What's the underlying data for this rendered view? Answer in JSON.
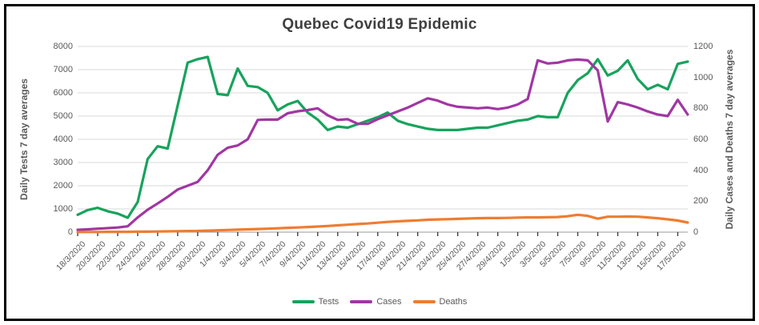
{
  "window": {
    "title": "Quebec Covid19 Epidemic"
  },
  "colors": {
    "tests": "#17A35C",
    "cases": "#A136A3",
    "deaths": "#EE7D31",
    "grid": "#D9D9D9",
    "axis_line": "#9a9a9a",
    "tick_mark": "#404040",
    "title_text": "#3f3f3f",
    "label_text": "#595959",
    "frame": "#000000"
  },
  "chart_data": {
    "type": "line",
    "title": "Quebec Covid19 Epidemic",
    "xlabel": "",
    "ylabel_left": "Daily Tests 7 day averages",
    "ylabel_right": "Daily Cases and Deaths 7 day averages",
    "grid": "horizontal",
    "legend_position": "bottom",
    "y_left": {
      "min": 0,
      "max": 8000,
      "tick_step": 1000,
      "ticks": [
        0,
        1000,
        2000,
        3000,
        4000,
        5000,
        6000,
        7000,
        8000
      ]
    },
    "y_right": {
      "min": 0,
      "max": 1200,
      "tick_step": 200,
      "ticks": [
        0,
        200,
        400,
        600,
        800,
        1000,
        1200
      ]
    },
    "x": [
      "18/3/2020",
      "19/3/2020",
      "20/3/2020",
      "21/3/2020",
      "22/3/2020",
      "23/3/2020",
      "24/3/2020",
      "25/3/2020",
      "26/3/2020",
      "27/3/2020",
      "28/3/2020",
      "29/3/2020",
      "30/3/2020",
      "31/3/2020",
      "1/4/2020",
      "2/4/2020",
      "3/4/2020",
      "4/4/2020",
      "5/4/2020",
      "6/4/2020",
      "7/4/2020",
      "8/4/2020",
      "9/4/2020",
      "10/4/2020",
      "11/4/2020",
      "12/4/2020",
      "13/4/2020",
      "14/4/2020",
      "15/4/2020",
      "16/4/2020",
      "17/4/2020",
      "18/4/2020",
      "19/4/2020",
      "20/4/2020",
      "21/4/2020",
      "22/4/2020",
      "23/4/2020",
      "24/4/2020",
      "25/4/2020",
      "26/4/2020",
      "27/4/2020",
      "28/4/2020",
      "29/4/2020",
      "30/4/2020",
      "1/5/2020",
      "2/5/2020",
      "3/5/2020",
      "4/5/2020",
      "5/5/2020",
      "6/5/2020",
      "7/5/2020",
      "8/5/2020",
      "9/5/2020",
      "10/5/2020",
      "11/5/2020",
      "12/5/2020",
      "13/5/2020",
      "14/5/2020",
      "15/5/2020",
      "16/5/2020",
      "17/5/2020",
      "18/5/2020"
    ],
    "x_tick_labels": [
      "18/3/2020",
      "20/3/2020",
      "22/3/2020",
      "24/3/2020",
      "26/3/2020",
      "28/3/2020",
      "30/3/2020",
      "1/4/2020",
      "3/4/2020",
      "5/4/2020",
      "7/4/2020",
      "9/4/2020",
      "11/4/2020",
      "13/4/2020",
      "15/4/2020",
      "17/4/2020",
      "19/4/2020",
      "21/4/2020",
      "23/4/2020",
      "25/4/2020",
      "27/4/2020",
      "29/4/2020",
      "1/5/2020",
      "3/5/2020",
      "5/5/2020",
      "7/5/2020",
      "9/5/2020",
      "11/5/2020",
      "13/5/2020",
      "15/5/2020",
      "17/5/2020"
    ],
    "series": [
      {
        "name": "Tests",
        "axis": "left",
        "color": "#17A35C",
        "values": [
          750,
          950,
          1050,
          900,
          800,
          620,
          1300,
          3150,
          3700,
          3600,
          5450,
          7300,
          7450,
          7550,
          5950,
          5900,
          7050,
          6300,
          6250,
          6000,
          5250,
          5500,
          5650,
          5150,
          4850,
          4400,
          4550,
          4500,
          4650,
          4800,
          4950,
          5150,
          4800,
          4650,
          4550,
          4450,
          4400,
          4400,
          4400,
          4450,
          4500,
          4500,
          4600,
          4700,
          4800,
          4850,
          5000,
          4950,
          4950,
          6000,
          6550,
          6850,
          7450,
          6750,
          6950,
          7400,
          6600,
          6150,
          6350,
          6150,
          7250,
          7350
        ]
      },
      {
        "name": "Cases",
        "axis": "right",
        "color": "#A136A3",
        "values": [
          15,
          18,
          22,
          26,
          30,
          38,
          95,
          145,
          185,
          228,
          275,
          300,
          325,
          400,
          500,
          545,
          560,
          600,
          725,
          728,
          727,
          768,
          781,
          789,
          800,
          755,
          725,
          730,
          700,
          700,
          730,
          755,
          780,
          805,
          835,
          865,
          850,
          825,
          810,
          805,
          800,
          805,
          795,
          805,
          825,
          860,
          1110,
          1090,
          1095,
          1110,
          1115,
          1110,
          1045,
          715,
          840,
          825,
          805,
          780,
          760,
          750,
          855,
          760
        ]
      },
      {
        "name": "Deaths",
        "axis": "right",
        "color": "#EE7D31",
        "values": [
          1,
          1,
          1,
          2,
          2,
          2,
          3,
          3,
          4,
          5,
          6,
          7,
          8,
          10,
          12,
          14,
          16,
          18,
          20,
          22,
          25,
          28,
          30,
          33,
          36,
          40,
          44,
          48,
          52,
          56,
          61,
          66,
          70,
          73,
          76,
          80,
          82,
          84,
          86,
          88,
          90,
          91,
          91,
          92,
          94,
          95,
          95,
          96,
          98,
          103,
          112,
          105,
          87,
          100,
          100,
          101,
          100,
          95,
          90,
          83,
          75,
          62
        ]
      }
    ]
  }
}
